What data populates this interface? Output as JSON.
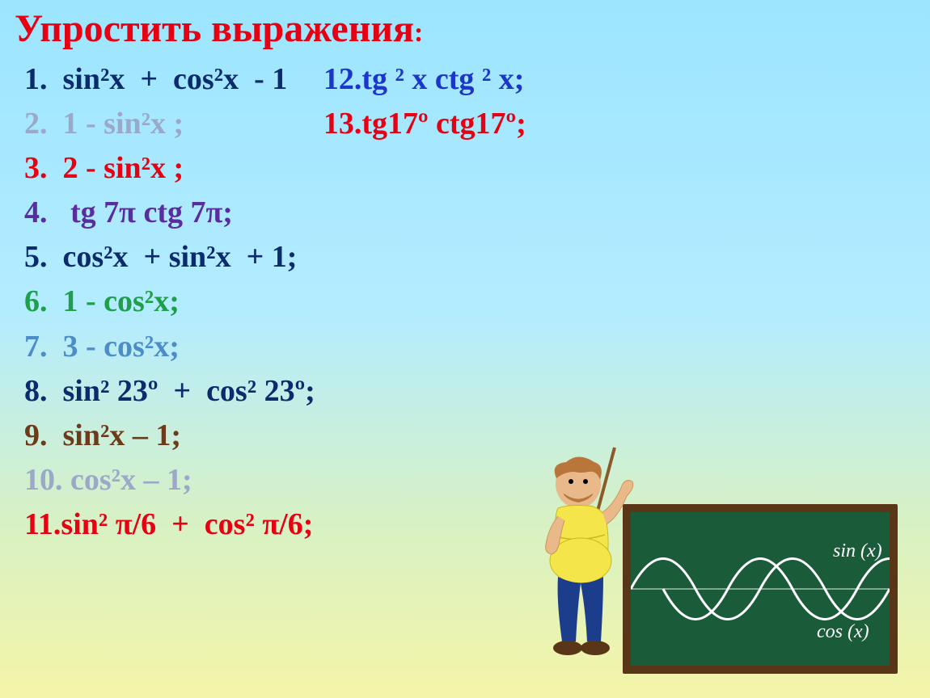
{
  "title": "Упростить выражения",
  "title_colon": ":",
  "left_items": [
    {
      "num": "1.",
      "text": "  sin²x  +  cos²x  - 1",
      "color": "#0B2B6B"
    },
    {
      "num": "2.",
      "text": "  1 - sin²x ;",
      "color": "#9AA8C9"
    },
    {
      "num": "3.",
      "text": "  2 - sin²x ;",
      "color": "#E60012"
    },
    {
      "num": "4.",
      "text": "   tg 7π ctg 7π;",
      "color": "#5B2C9E"
    },
    {
      "num": "5.",
      "text": "  cos²x  + sin²x  + 1;",
      "color": "#0B2B6B"
    },
    {
      "num": "6.",
      "text": "  1 - cos²x;",
      "color": "#1F9E4B"
    },
    {
      "num": "7.",
      "text": "  3 - cos²x;",
      "color": "#4C8CC9"
    },
    {
      "num": "8.",
      "text": "  sin² 23º  +  cos² 23º;",
      "color": "#0B2B6B"
    },
    {
      "num": "9.",
      "text": "  sin²x – 1;",
      "color": "#6B3B1A"
    },
    {
      "num": "10.",
      "text": " cos²x – 1;",
      "color": "#9AA8C9"
    },
    {
      "num": "11.",
      "text": "sin² π/6  +  cos² π/6;",
      "color": "#E60012"
    }
  ],
  "right_items": [
    {
      "num": "12.",
      "text": "tg ² x ctg ² x;",
      "color": "#1B36C9"
    },
    {
      "num": "13.",
      "text": "tg17º ctg17º;",
      "color": "#E60012"
    }
  ],
  "board": {
    "bg": "#1a5c3a",
    "frame": "#5a3618",
    "sin_label": "sin (x)",
    "cos_label": "cos (x)",
    "curve_color": "#ffffff"
  },
  "teacher_colors": {
    "shirt": "#F4E64A",
    "pants": "#1C3C8C",
    "skin": "#E9B98A",
    "hair": "#B8763B",
    "shoes": "#5A3618",
    "stick": "#8B5A2B"
  }
}
